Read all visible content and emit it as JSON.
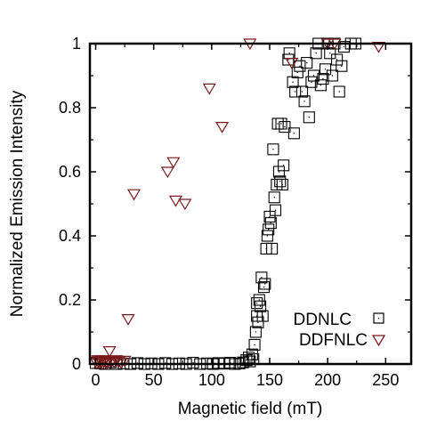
{
  "chart_data": {
    "type": "scatter",
    "title": "",
    "xlabel": "Magnetic field (mT)",
    "ylabel": "Normalized Emission Intensity",
    "xlim": [
      -5,
      272
    ],
    "ylim": [
      0,
      1
    ],
    "xticks": [
      0,
      50,
      100,
      150,
      200,
      250
    ],
    "xtick_labels": [
      "0",
      "50",
      "100",
      "150",
      "200",
      "250"
    ],
    "yticks": [
      0,
      0.2,
      0.4,
      0.6,
      0.8,
      1
    ],
    "ytick_labels": [
      "0",
      "0.2",
      "0.4",
      "0.6",
      "0.8",
      "1"
    ],
    "grid": false,
    "legend_position": "bottom-right",
    "series": [
      {
        "name": "DDNLC",
        "marker": "square",
        "color": "#000000",
        "points": [
          [
            0,
            0.003
          ],
          [
            4,
            0.002
          ],
          [
            8,
            0
          ],
          [
            13,
            0.005
          ],
          [
            18,
            0
          ],
          [
            24,
            0.002
          ],
          [
            30,
            0
          ],
          [
            36,
            0.003
          ],
          [
            42,
            0
          ],
          [
            48,
            0.002
          ],
          [
            54,
            0
          ],
          [
            60,
            0.003
          ],
          [
            66,
            0
          ],
          [
            72,
            0.002
          ],
          [
            78,
            0
          ],
          [
            84,
            0.004
          ],
          [
            90,
            0
          ],
          [
            96,
            0.002
          ],
          [
            101,
            0
          ],
          [
            106,
            0.003
          ],
          [
            111,
            0.001
          ],
          [
            116,
            0.004
          ],
          [
            120,
            0
          ],
          [
            124,
            0.002
          ],
          [
            127,
            0.005
          ],
          [
            130,
            0.012
          ],
          [
            132,
            0.02
          ],
          [
            133,
            0.008
          ],
          [
            135,
            0.03
          ],
          [
            136,
            0.015
          ],
          [
            137,
            0.06
          ],
          [
            138,
            0.1
          ],
          [
            139,
            0.15
          ],
          [
            139,
            0.19
          ],
          [
            140,
            0.13
          ],
          [
            141,
            0.2
          ],
          [
            142,
            0.18
          ],
          [
            143,
            0.27
          ],
          [
            144,
            0.15
          ],
          [
            145,
            0.24
          ],
          [
            146,
            0.25
          ],
          [
            147,
            0.36
          ],
          [
            148,
            0.4
          ],
          [
            149,
            0.42
          ],
          [
            150,
            0.46
          ],
          [
            151,
            0.44
          ],
          [
            152,
            0.36
          ],
          [
            153,
            0.67
          ],
          [
            154,
            0.52
          ],
          [
            155,
            0.48
          ],
          [
            156,
            0.56
          ],
          [
            157,
            0.75
          ],
          [
            158,
            0.6
          ],
          [
            159,
            0.57
          ],
          [
            160,
            0.75
          ],
          [
            161,
            0.56
          ],
          [
            162,
            0.62
          ],
          [
            163,
            0.74
          ],
          [
            166,
            0.95
          ],
          [
            167,
            0.97
          ],
          [
            170,
            0.88
          ],
          [
            171,
            0.72
          ],
          [
            172,
            0.85
          ],
          [
            174,
            0.91
          ],
          [
            176,
            0.93
          ],
          [
            178,
            0.85
          ],
          [
            180,
            0.82
          ],
          [
            182,
            0.94
          ],
          [
            184,
            0.77
          ],
          [
            186,
            0.88
          ],
          [
            188,
            0.9
          ],
          [
            190,
            0.97
          ],
          [
            192,
            1
          ],
          [
            194,
            0.87
          ],
          [
            196,
            0.89
          ],
          [
            198,
            0.92
          ],
          [
            200,
            1
          ],
          [
            202,
            0.97
          ],
          [
            204,
            0.9
          ],
          [
            206,
            1
          ],
          [
            208,
            0.95
          ],
          [
            210,
            0.85
          ],
          [
            212,
            0.93
          ],
          [
            214,
            0.99
          ],
          [
            220,
            1
          ],
          [
            224,
            1
          ]
        ]
      },
      {
        "name": "DDFNLC",
        "marker": "triangle-down",
        "color": "#7a1a1a",
        "points": [
          [
            0,
            0.008
          ],
          [
            1,
            0.002
          ],
          [
            2,
            0.012
          ],
          [
            3,
            0.004
          ],
          [
            4,
            0.01
          ],
          [
            5,
            0.006
          ],
          [
            6,
            0
          ],
          [
            7,
            0.008
          ],
          [
            8,
            0.012
          ],
          [
            9,
            0.005
          ],
          [
            10,
            0.003
          ],
          [
            11,
            0.009
          ],
          [
            12,
            0.04
          ],
          [
            14,
            0.01
          ],
          [
            16,
            0.006
          ],
          [
            18,
            0.012
          ],
          [
            20,
            0.008
          ],
          [
            22,
            0.004
          ],
          [
            25,
            0.01
          ],
          [
            28,
            0.14
          ],
          [
            33,
            0.53
          ],
          [
            62,
            0.6
          ],
          [
            67,
            0.63
          ],
          [
            69,
            0.51
          ],
          [
            77,
            0.5
          ],
          [
            98,
            0.86
          ],
          [
            109,
            0.74
          ],
          [
            133,
            1
          ],
          [
            169,
            0.94
          ],
          [
            200,
            1
          ],
          [
            206,
            1
          ],
          [
            244,
            0.99
          ]
        ]
      }
    ]
  }
}
